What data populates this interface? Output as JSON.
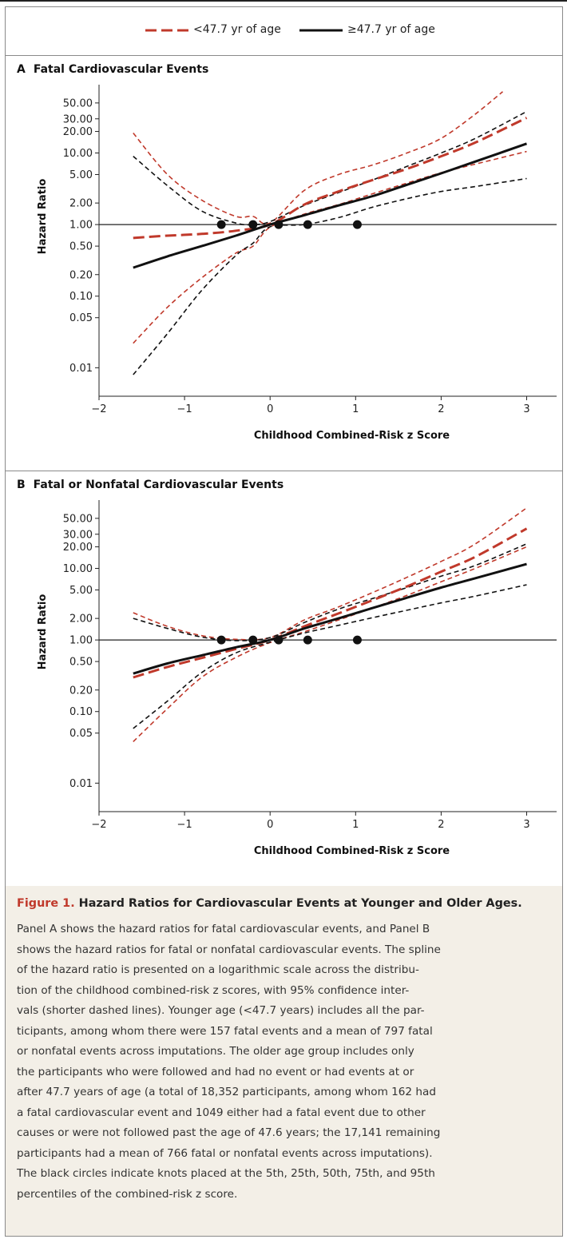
{
  "legend": {
    "young_label": "<47.7 yr of age",
    "old_label": "≥47.7 yr of age"
  },
  "colors": {
    "young": "#c0392b",
    "old": "#111111",
    "caption_bg": "#f3efe7",
    "figure_label": "#c0392b"
  },
  "chart_data": [
    {
      "type": "line",
      "panel": "A",
      "title": "Fatal Cardiovascular Events",
      "xlabel": "Childhood Combined-Risk z Score",
      "ylabel": "Hazard Ratio",
      "yscale": "log",
      "xlim": [
        -2,
        3.35
      ],
      "ylim": [
        0.004,
        90
      ],
      "x_ticks": [
        -2,
        -1,
        0,
        1,
        2,
        3
      ],
      "x_tick_labels": [
        "−2",
        "−1",
        "0",
        "1",
        "2",
        "3"
      ],
      "y_ticks": [
        0.01,
        0.05,
        0.1,
        0.2,
        0.5,
        1,
        2,
        5,
        10,
        20,
        30,
        50
      ],
      "y_tick_labels": [
        "0.01",
        "0.05",
        "0.10",
        "0.20",
        "0.50",
        "1.00",
        "2.00",
        "5.00",
        "10.00",
        "20.00",
        "30.00",
        "50.00"
      ],
      "reference_line": 1,
      "knots": [
        {
          "x": -0.57,
          "y": 1
        },
        {
          "x": -0.2,
          "y": 1
        },
        {
          "x": 0.1,
          "y": 1
        },
        {
          "x": 0.44,
          "y": 1
        },
        {
          "x": 1.02,
          "y": 1
        }
      ],
      "series": [
        {
          "name": "<47.7 yr of age",
          "role": "estimate",
          "color": "#c0392b",
          "x": [
            -1.6,
            -1.2,
            -0.8,
            -0.4,
            0,
            0.4,
            0.8,
            1.2,
            1.6,
            2,
            2.4,
            3
          ],
          "y": [
            0.65,
            0.7,
            0.74,
            0.82,
            1.0,
            1.9,
            2.9,
            4.2,
            6,
            9,
            14,
            31
          ]
        },
        {
          "role": "ci-upper",
          "color": "#c0392b",
          "x": [
            -1.6,
            -1.2,
            -0.8,
            -0.4,
            -0.2,
            0,
            0.4,
            0.8,
            1.2,
            1.6,
            2,
            2.4,
            2.72
          ],
          "y": [
            19,
            5,
            2.2,
            1.3,
            1.3,
            1.05,
            3,
            5,
            6.8,
            10,
            16,
            35,
            72
          ]
        },
        {
          "role": "ci-lower",
          "color": "#c0392b",
          "x": [
            -1.6,
            -1.2,
            -0.8,
            -0.4,
            -0.2,
            0,
            0.4,
            0.8,
            1.2,
            1.6,
            2,
            2.4,
            3
          ],
          "y": [
            0.022,
            0.07,
            0.18,
            0.4,
            0.5,
            0.92,
            1.4,
            1.9,
            2.7,
            3.8,
            5.3,
            7,
            10.5
          ]
        },
        {
          "name": "≥47.7 yr of age",
          "role": "estimate",
          "color": "#111111",
          "x": [
            -1.6,
            -1.2,
            -0.8,
            -0.4,
            0,
            0.4,
            0.8,
            1.2,
            1.6,
            2,
            2.4,
            3
          ],
          "y": [
            0.25,
            0.36,
            0.5,
            0.7,
            1.0,
            1.35,
            1.85,
            2.5,
            3.6,
            5.2,
            7.6,
            13.5
          ]
        },
        {
          "role": "ci-upper",
          "color": "#111111",
          "x": [
            -1.6,
            -1.2,
            -0.8,
            -0.4,
            -0.2,
            0,
            0.4,
            0.8,
            1.2,
            1.6,
            2,
            2.4,
            3
          ],
          "y": [
            9,
            3.5,
            1.55,
            1.05,
            1.0,
            1.1,
            1.85,
            2.8,
            4.2,
            6.5,
            10,
            16,
            38
          ]
        },
        {
          "role": "ci-lower",
          "color": "#111111",
          "x": [
            -1.6,
            -1.2,
            -0.8,
            -0.4,
            -0.2,
            0,
            0.4,
            0.8,
            1.2,
            1.6,
            2,
            2.4,
            3
          ],
          "y": [
            0.008,
            0.03,
            0.12,
            0.37,
            0.55,
            0.93,
            1.0,
            1.25,
            1.75,
            2.3,
            2.9,
            3.4,
            4.4
          ]
        }
      ]
    },
    {
      "type": "line",
      "panel": "B",
      "title": "Fatal or Nonfatal Cardiovascular Events",
      "xlabel": "Childhood Combined-Risk z Score",
      "ylabel": "Hazard Ratio",
      "yscale": "log",
      "xlim": [
        -2,
        3.35
      ],
      "ylim": [
        0.004,
        90
      ],
      "x_ticks": [
        -2,
        -1,
        0,
        1,
        2,
        3
      ],
      "x_tick_labels": [
        "−2",
        "−1",
        "0",
        "1",
        "2",
        "3"
      ],
      "y_ticks": [
        0.01,
        0.05,
        0.1,
        0.2,
        0.5,
        1,
        2,
        5,
        10,
        20,
        30,
        50
      ],
      "y_tick_labels": [
        "0.01",
        "0.05",
        "0.10",
        "0.20",
        "0.50",
        "1.00",
        "2.00",
        "5.00",
        "10.00",
        "20.00",
        "30.00",
        "50.00"
      ],
      "reference_line": 1,
      "knots": [
        {
          "x": -0.57,
          "y": 1
        },
        {
          "x": -0.2,
          "y": 1
        },
        {
          "x": 0.1,
          "y": 1
        },
        {
          "x": 0.44,
          "y": 1
        },
        {
          "x": 1.02,
          "y": 1
        }
      ],
      "series": [
        {
          "name": "<47.7 yr of age",
          "role": "estimate",
          "color": "#c0392b",
          "x": [
            -1.6,
            -1.2,
            -0.8,
            -0.4,
            0,
            0.4,
            0.8,
            1.2,
            1.6,
            2,
            2.4,
            3
          ],
          "y": [
            0.3,
            0.42,
            0.56,
            0.75,
            1.0,
            1.55,
            2.35,
            3.6,
            5.6,
            9,
            14.5,
            36
          ]
        },
        {
          "role": "ci-upper",
          "color": "#c0392b",
          "x": [
            -1.6,
            -1.2,
            -0.8,
            -0.4,
            0,
            0.4,
            0.8,
            1.2,
            1.6,
            2,
            2.4,
            3
          ],
          "y": [
            2.4,
            1.55,
            1.15,
            1.02,
            1.08,
            1.9,
            2.9,
            4.6,
            7.5,
            12.5,
            22,
            70
          ]
        },
        {
          "role": "ci-lower",
          "color": "#c0392b",
          "x": [
            -1.6,
            -1.2,
            -0.8,
            -0.4,
            0,
            0.4,
            0.8,
            1.2,
            1.6,
            2,
            2.4,
            3
          ],
          "y": [
            0.038,
            0.11,
            0.3,
            0.57,
            0.92,
            1.3,
            1.9,
            2.8,
            4.2,
            6.5,
            10,
            20
          ]
        },
        {
          "name": "≥47.7 yr of age",
          "role": "estimate",
          "color": "#111111",
          "x": [
            -1.6,
            -1.2,
            -0.8,
            -0.4,
            0,
            0.4,
            0.8,
            1.2,
            1.6,
            2,
            2.4,
            3
          ],
          "y": [
            0.34,
            0.47,
            0.61,
            0.79,
            1.0,
            1.45,
            2.0,
            2.8,
            3.9,
            5.4,
            7.3,
            11.5
          ]
        },
        {
          "role": "ci-upper",
          "color": "#111111",
          "x": [
            -1.6,
            -1.2,
            -0.8,
            -0.4,
            0,
            0.4,
            0.8,
            1.2,
            1.6,
            2,
            2.4,
            3
          ],
          "y": [
            2.0,
            1.45,
            1.1,
            0.98,
            1.08,
            1.75,
            2.7,
            3.8,
            5.4,
            7.8,
            11,
            22
          ]
        },
        {
          "role": "ci-lower",
          "color": "#111111",
          "x": [
            -1.6,
            -1.2,
            -0.8,
            -0.4,
            0,
            0.4,
            0.8,
            1.2,
            1.6,
            2,
            2.4,
            3
          ],
          "y": [
            0.058,
            0.14,
            0.35,
            0.66,
            0.93,
            1.25,
            1.6,
            2.05,
            2.6,
            3.3,
            4.1,
            5.9
          ]
        }
      ]
    }
  ],
  "caption": {
    "figure_label": "Figure 1.",
    "title": "Hazard Ratios for Cardiovascular Events at Younger and Older Ages.",
    "lines": [
      "Panel A shows the hazard ratios for fatal cardiovascular events, and Panel B",
      "shows the hazard ratios for fatal or nonfatal cardiovascular events. The spline",
      "of the hazard ratio is presented on a logarithmic scale across the distribu-",
      "tion of the childhood combined-risk z scores, with 95% confidence inter-",
      "vals (shorter dashed lines). Younger age (<47.7 years) includes all the par-",
      "ticipants, among whom there were 157 fatal events and a mean of 797 fatal",
      "or nonfatal events across imputations. The older age group includes only",
      "the participants who were followed and had no event or had events at or",
      "after 47.7 years of age (a total of 18,352 participants, among whom 162 had",
      "a fatal cardiovascular event and 1049 either had a fatal event due to other",
      "causes or were not followed past the age of 47.6 years; the 17,141 remaining",
      "participants had a mean of 766 fatal or nonfatal events across imputations).",
      "The black circles indicate knots placed at the 5th, 25th, 50th, 75th, and 95th",
      "percentiles of the combined-risk z score."
    ]
  }
}
